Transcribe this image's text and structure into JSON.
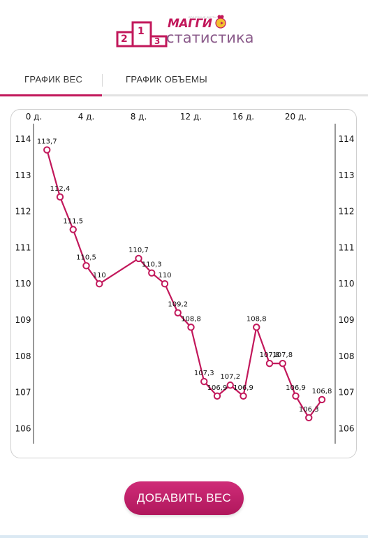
{
  "header": {
    "brand": "МАГГИ",
    "subtitle": "статистика",
    "tagline": "ВРАЧЕБНЫЕ ДИЕТЫ",
    "podium": [
      "1",
      "2",
      "3"
    ]
  },
  "tabs": [
    {
      "label": "ГРАФИК ВЕС",
      "active": true
    },
    {
      "label": "ГРАФИК ОБЪЕМЫ",
      "active": false
    }
  ],
  "colors": {
    "accent": "#c2185b",
    "line": "#c2185b",
    "grid_border": "#cfcfcf"
  },
  "chart_data": {
    "type": "line",
    "title": "",
    "xlabel": "",
    "ylabel": "",
    "x_ticks": [
      "0 д.",
      "4 д.",
      "8 д.",
      "12 д.",
      "16 д.",
      "20 д."
    ],
    "x_tick_values": [
      0,
      4,
      8,
      12,
      16,
      20
    ],
    "y_ticks": [
      "114",
      "113",
      "112",
      "111",
      "110",
      "109",
      "108",
      "107",
      "106"
    ],
    "y_tick_values": [
      114,
      113,
      112,
      111,
      110,
      109,
      108,
      107,
      106
    ],
    "xlim": [
      0,
      22.5
    ],
    "ylim": [
      105.8,
      114.3
    ],
    "grid": false,
    "legend": "none",
    "series": [
      {
        "x": [
          1,
          2,
          3,
          4,
          5,
          8,
          9,
          10,
          11,
          12,
          13,
          14,
          15,
          16,
          17,
          18,
          19,
          20,
          21,
          22
        ],
        "values": [
          113.7,
          112.4,
          111.5,
          110.5,
          110,
          110.7,
          110.3,
          110,
          109.2,
          108.8,
          107.3,
          106.9,
          107.2,
          106.9,
          108.8,
          107.8,
          107.8,
          106.9,
          106.3,
          106.8
        ],
        "labels": [
          "113,7",
          "112,4",
          "111,5",
          "110,5",
          "110",
          "110,7",
          "110,3",
          "110",
          "109,2",
          "108,8",
          "107,3",
          "106,9",
          "107,2",
          "106,9",
          "108,8",
          "107,8",
          "107,8",
          "106,9",
          "106,3",
          "106,8"
        ]
      }
    ]
  },
  "button": {
    "label": "ДОБАВИТЬ ВЕС"
  }
}
